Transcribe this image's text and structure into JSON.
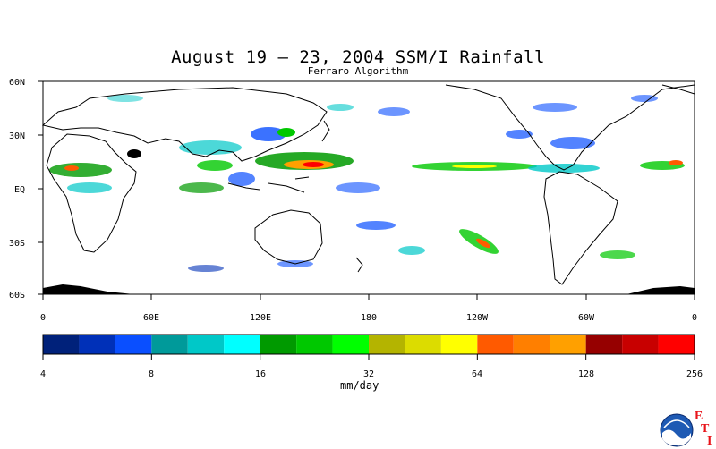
{
  "title": "August 19 – 23, 2004 SSM/I Rainfall",
  "subtitle": "Ferraro Algorithm",
  "map": {
    "lat_labels": [
      "60N",
      "30N",
      "EQ",
      "30S",
      "60S"
    ],
    "lon_labels": [
      "0",
      "60E",
      "120E",
      "180",
      "120W",
      "60W",
      "0"
    ]
  },
  "colorbar": {
    "colors": [
      "#00217a",
      "#0030b8",
      "#0a4fff",
      "#009a9a",
      "#00c8c8",
      "#00ffff",
      "#009a00",
      "#00c800",
      "#00ff00",
      "#b4b400",
      "#dcdc00",
      "#ffff00",
      "#ff5a00",
      "#ff7f00",
      "#ffa000",
      "#960000",
      "#c80000",
      "#ff0000"
    ],
    "tick_labels": [
      "4",
      "8",
      "16",
      "32",
      "64",
      "128",
      "256"
    ],
    "units": "mm/day"
  },
  "logo": {
    "icon": "noaa-logo",
    "letters": [
      "E",
      "T",
      "I"
    ]
  }
}
